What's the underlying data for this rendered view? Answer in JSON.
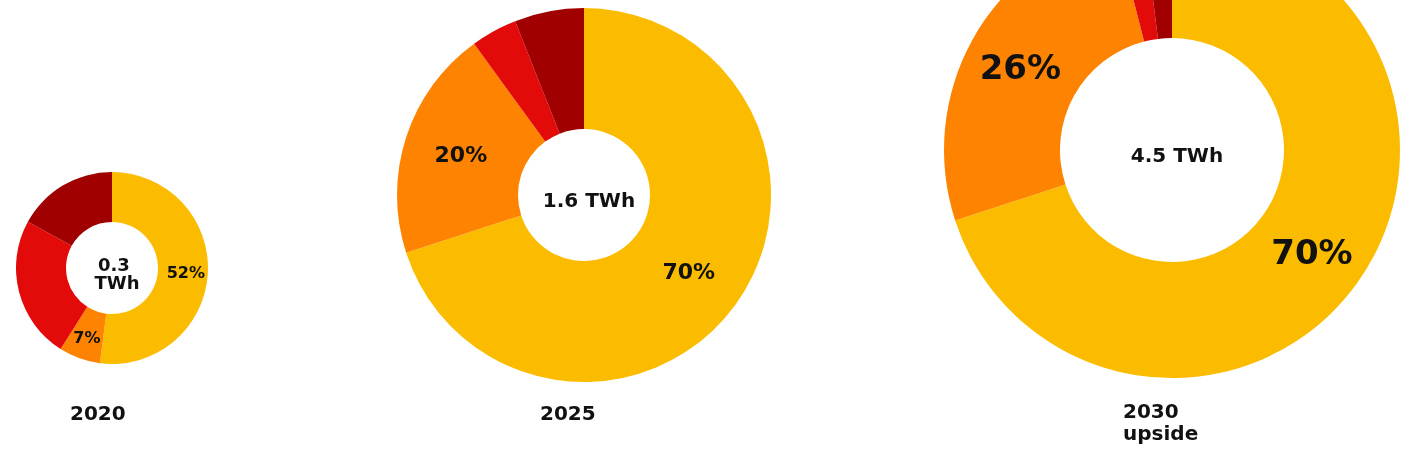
{
  "chart_data": [
    {
      "type": "donut",
      "title": "0.3 TWh",
      "xlabel": "2020",
      "categories": [
        null,
        null,
        null,
        null
      ],
      "values": [
        52,
        7,
        24,
        17
      ],
      "colors": [
        "#fbbc00",
        "#fd8300",
        "#e30a0a",
        "#a00000"
      ],
      "value_labels": [
        "52%",
        "7%",
        null,
        null
      ]
    },
    {
      "type": "donut",
      "title": "1.6 TWh",
      "xlabel": "2025",
      "categories": [
        null,
        null,
        null,
        null
      ],
      "values": [
        70,
        20,
        4,
        6
      ],
      "colors": [
        "#fbbc00",
        "#fd8300",
        "#e30a0a",
        "#a00000"
      ],
      "value_labels": [
        "70%",
        "20%",
        null,
        null
      ]
    },
    {
      "type": "donut",
      "title": "4.5 TWh",
      "xlabel": "2030 upside",
      "categories": [
        null,
        null,
        null,
        null
      ],
      "values": [
        70,
        26,
        2,
        2
      ],
      "colors": [
        "#fbbc00",
        "#fd8300",
        "#e30a0a",
        "#a00000"
      ],
      "value_labels": [
        "70%",
        "26%",
        null,
        null
      ]
    }
  ]
}
